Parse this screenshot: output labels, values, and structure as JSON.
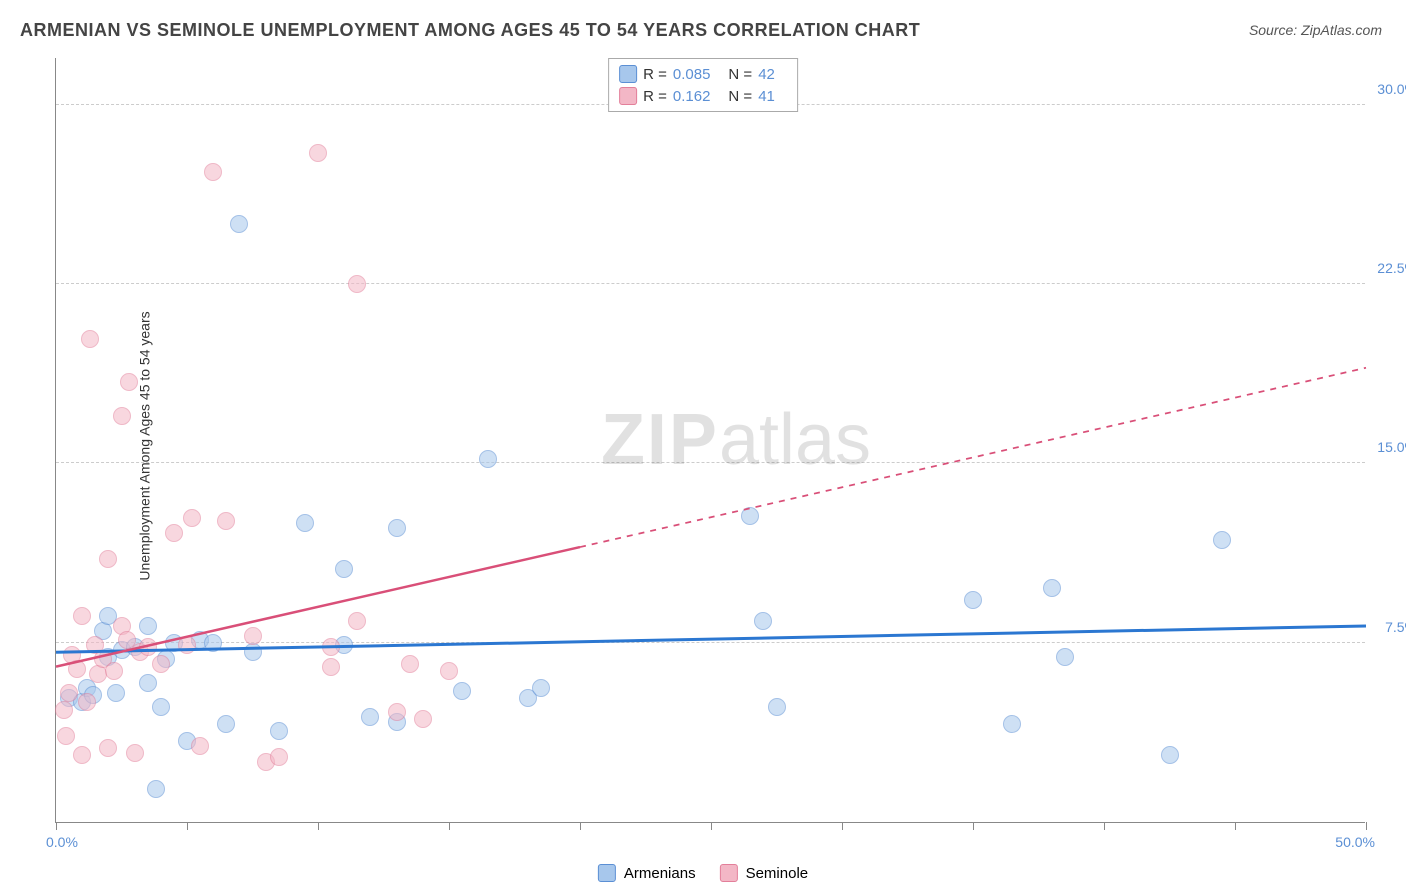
{
  "title": "ARMENIAN VS SEMINOLE UNEMPLOYMENT AMONG AGES 45 TO 54 YEARS CORRELATION CHART",
  "source": "Source: ZipAtlas.com",
  "y_axis_label": "Unemployment Among Ages 45 to 54 years",
  "watermark_zip": "ZIP",
  "watermark_atlas": "atlas",
  "chart": {
    "type": "scatter",
    "background_color": "#ffffff",
    "grid_color": "#cccccc",
    "axis_color": "#888888",
    "tick_label_color": "#5b8fd4",
    "x_range": [
      0,
      50
    ],
    "y_range": [
      0,
      32
    ],
    "y_ticks": [
      {
        "value": 7.5,
        "label": "7.5%"
      },
      {
        "value": 15.0,
        "label": "15.0%"
      },
      {
        "value": 22.5,
        "label": "22.5%"
      },
      {
        "value": 30.0,
        "label": "30.0%"
      }
    ],
    "x_min_label": "0.0%",
    "x_max_label": "50.0%",
    "x_ticks_at": [
      0,
      5,
      10,
      15,
      20,
      25,
      30,
      35,
      40,
      45,
      50
    ],
    "marker_radius": 9,
    "marker_opacity": 0.55,
    "series": [
      {
        "name": "Armenians",
        "fill": "#a7c7ec",
        "stroke": "#5b8fd4",
        "trend_color": "#2b77d1",
        "trend_width": 3,
        "trend": {
          "x1": 0,
          "y1": 7.1,
          "x2": 50,
          "y2": 8.2,
          "solid_until_x": 50
        },
        "r": "0.085",
        "n": "42",
        "points": [
          {
            "x": 0.5,
            "y": 5.2
          },
          {
            "x": 1.0,
            "y": 5.0
          },
          {
            "x": 1.2,
            "y": 5.6
          },
          {
            "x": 1.4,
            "y": 5.3
          },
          {
            "x": 1.8,
            "y": 8.0
          },
          {
            "x": 2.0,
            "y": 6.9
          },
          {
            "x": 2.0,
            "y": 8.6
          },
          {
            "x": 2.3,
            "y": 5.4
          },
          {
            "x": 2.5,
            "y": 7.2
          },
          {
            "x": 3.0,
            "y": 7.3
          },
          {
            "x": 3.5,
            "y": 5.8
          },
          {
            "x": 3.5,
            "y": 8.2
          },
          {
            "x": 3.8,
            "y": 1.4
          },
          {
            "x": 4.0,
            "y": 4.8
          },
          {
            "x": 4.2,
            "y": 6.8
          },
          {
            "x": 4.5,
            "y": 7.5
          },
          {
            "x": 5.0,
            "y": 3.4
          },
          {
            "x": 5.5,
            "y": 7.6
          },
          {
            "x": 6.0,
            "y": 7.5
          },
          {
            "x": 6.5,
            "y": 4.1
          },
          {
            "x": 7.0,
            "y": 25.0
          },
          {
            "x": 7.5,
            "y": 7.1
          },
          {
            "x": 8.5,
            "y": 3.8
          },
          {
            "x": 9.5,
            "y": 12.5
          },
          {
            "x": 11.0,
            "y": 10.6
          },
          {
            "x": 11.0,
            "y": 7.4
          },
          {
            "x": 12.0,
            "y": 4.4
          },
          {
            "x": 13.0,
            "y": 12.3
          },
          {
            "x": 13.0,
            "y": 4.2
          },
          {
            "x": 15.5,
            "y": 5.5
          },
          {
            "x": 16.5,
            "y": 15.2
          },
          {
            "x": 18.0,
            "y": 5.2
          },
          {
            "x": 18.5,
            "y": 5.6
          },
          {
            "x": 26.5,
            "y": 12.8
          },
          {
            "x": 27.0,
            "y": 8.4
          },
          {
            "x": 27.5,
            "y": 4.8
          },
          {
            "x": 35.0,
            "y": 9.3
          },
          {
            "x": 36.5,
            "y": 4.1
          },
          {
            "x": 38.0,
            "y": 9.8
          },
          {
            "x": 38.5,
            "y": 6.9
          },
          {
            "x": 42.5,
            "y": 2.8
          },
          {
            "x": 44.5,
            "y": 11.8
          }
        ]
      },
      {
        "name": "Seminole",
        "fill": "#f3b7c6",
        "stroke": "#e37f9a",
        "trend_color": "#d94f78",
        "trend_width": 2.5,
        "trend": {
          "x1": 0,
          "y1": 6.5,
          "x2": 50,
          "y2": 19.0,
          "solid_until_x": 20
        },
        "r": "0.162",
        "n": "41",
        "points": [
          {
            "x": 0.3,
            "y": 4.7
          },
          {
            "x": 0.4,
            "y": 3.6
          },
          {
            "x": 0.5,
            "y": 5.4
          },
          {
            "x": 0.6,
            "y": 7.0
          },
          {
            "x": 0.8,
            "y": 6.4
          },
          {
            "x": 1.0,
            "y": 2.8
          },
          {
            "x": 1.0,
            "y": 8.6
          },
          {
            "x": 1.2,
            "y": 5.0
          },
          {
            "x": 1.3,
            "y": 20.2
          },
          {
            "x": 1.5,
            "y": 7.4
          },
          {
            "x": 1.6,
            "y": 6.2
          },
          {
            "x": 1.8,
            "y": 6.8
          },
          {
            "x": 2.0,
            "y": 3.1
          },
          {
            "x": 2.0,
            "y": 11.0
          },
          {
            "x": 2.2,
            "y": 6.3
          },
          {
            "x": 2.5,
            "y": 8.2
          },
          {
            "x": 2.5,
            "y": 17.0
          },
          {
            "x": 2.7,
            "y": 7.6
          },
          {
            "x": 2.8,
            "y": 18.4
          },
          {
            "x": 3.0,
            "y": 2.9
          },
          {
            "x": 3.2,
            "y": 7.1
          },
          {
            "x": 3.5,
            "y": 7.3
          },
          {
            "x": 4.0,
            "y": 6.6
          },
          {
            "x": 4.5,
            "y": 12.1
          },
          {
            "x": 5.0,
            "y": 7.4
          },
          {
            "x": 5.2,
            "y": 12.7
          },
          {
            "x": 5.5,
            "y": 3.2
          },
          {
            "x": 6.0,
            "y": 27.2
          },
          {
            "x": 6.5,
            "y": 12.6
          },
          {
            "x": 7.5,
            "y": 7.8
          },
          {
            "x": 8.0,
            "y": 2.5
          },
          {
            "x": 8.5,
            "y": 2.7
          },
          {
            "x": 10.0,
            "y": 28.0
          },
          {
            "x": 10.5,
            "y": 6.5
          },
          {
            "x": 10.5,
            "y": 7.3
          },
          {
            "x": 11.5,
            "y": 22.5
          },
          {
            "x": 11.5,
            "y": 8.4
          },
          {
            "x": 13.0,
            "y": 4.6
          },
          {
            "x": 13.5,
            "y": 6.6
          },
          {
            "x": 14.0,
            "y": 4.3
          },
          {
            "x": 15.0,
            "y": 6.3
          }
        ]
      }
    ],
    "stats_legend": {
      "r_label": "R =",
      "n_label": "N ="
    },
    "bottom_legend": [
      {
        "label": "Armenians",
        "fill": "#a7c7ec",
        "stroke": "#5b8fd4"
      },
      {
        "label": "Seminole",
        "fill": "#f3b7c6",
        "stroke": "#e37f9a"
      }
    ]
  }
}
